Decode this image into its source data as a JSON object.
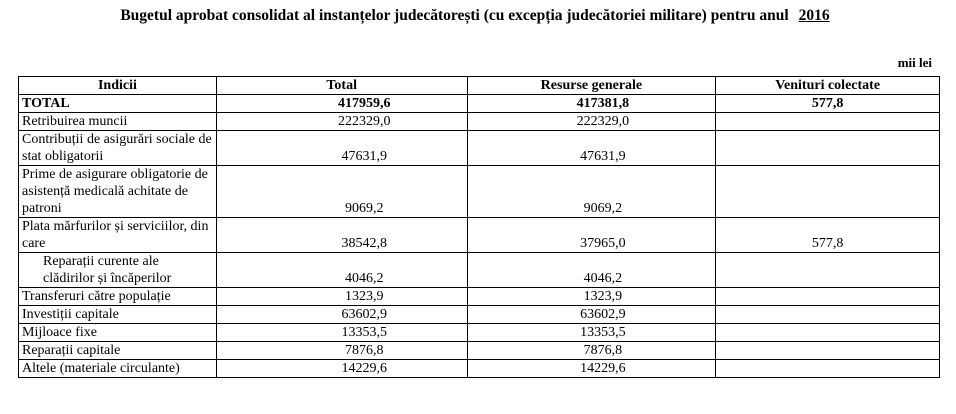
{
  "header": {
    "title": "Bugetul aprobat consolidat al instanțelor judecătorești (cu excepția judecătoriei militare) pentru anul",
    "year": "2016",
    "unit": "mii lei"
  },
  "table": {
    "columns": [
      "Indicii",
      "Total",
      "Resurse generale",
      "Venituri colectate"
    ],
    "rows": [
      {
        "indicator": "TOTAL",
        "total": "417959,6",
        "resurse": "417381,8",
        "venituri": "577,8",
        "bold": true
      },
      {
        "indicator": "Retribuirea muncii",
        "total": "222329,0",
        "resurse": "222329,0"
      },
      {
        "indicator": "Contribuții de asigurări sociale de stat obligatorii",
        "total": "47631,9",
        "resurse": "47631,9"
      },
      {
        "indicator": "Prime de asigurare obligatorie de asistență medicală achitate de patroni",
        "total": "9069,2",
        "resurse": "9069,2"
      },
      {
        "indicator": "Plata mărfurilor și serviciilor, din care",
        "total": "38542,8",
        "resurse": "37965,0",
        "venituri": "577,8"
      },
      {
        "indicator": "Reparații curente ale clădirilor și încăperilor",
        "total": "4046,2",
        "resurse": "4046,2",
        "indent": true
      },
      {
        "indicator": "Transferuri către populație",
        "total": "1323,9",
        "resurse": "1323,9"
      },
      {
        "indicator": "Investiții capitale",
        "total": "63602,9",
        "resurse": "63602,9"
      },
      {
        "indicator": "Mijloace fixe",
        "total": "13353,5",
        "resurse": "13353,5"
      },
      {
        "indicator": "Reparații capitale",
        "total": "7876,8",
        "resurse": "7876,8"
      },
      {
        "indicator": "Altele (materiale circulante)",
        "total": "14229,6",
        "resurse": "14229,6"
      }
    ]
  }
}
